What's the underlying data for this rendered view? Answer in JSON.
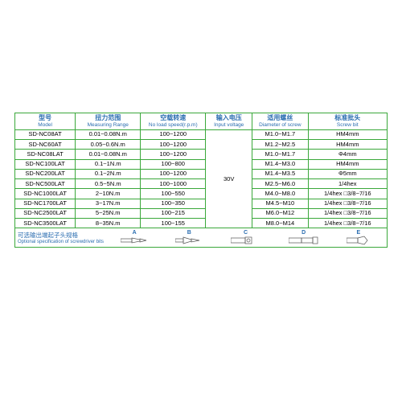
{
  "headers": [
    {
      "cn": "型号",
      "en": "Model"
    },
    {
      "cn": "扭力范围",
      "en": "Measuring Range"
    },
    {
      "cn": "空载转速",
      "en": "No load speed(r.p.m)"
    },
    {
      "cn": "输入电压",
      "en": "Input voltage"
    },
    {
      "cn": "适用螺丝",
      "en": "Diameter of screw"
    },
    {
      "cn": "标准批头",
      "en": "Screw bit"
    }
  ],
  "voltage": "30V",
  "rows": [
    {
      "model": "SD-NC08AT",
      "range": "0.01~0.08N.m",
      "speed": "100~1200",
      "screw": "M1.0~M1.7",
      "bit": "HM4mm"
    },
    {
      "model": "SD-NC60AT",
      "range": "0.05~0.6N.m",
      "speed": "100~1200",
      "screw": "M1.2~M2.5",
      "bit": "HM4mm"
    },
    {
      "model": "SD-NC08LAT",
      "range": "0.01~0.08N.m",
      "speed": "100~1200",
      "screw": "M1.0~M1.7",
      "bit": "Φ4mm"
    },
    {
      "model": "SD-NC100LAT",
      "range": "0.1~1N.m",
      "speed": "100~800",
      "screw": "M1.4~M3.0",
      "bit": "HM4mm"
    },
    {
      "model": "SD-NC200LAT",
      "range": "0.1~2N.m",
      "speed": "100~1200",
      "screw": "M1.4~M3.5",
      "bit": "Φ5mm"
    },
    {
      "model": "SD-NC500LAT",
      "range": "0.5~5N.m",
      "speed": "100~1000",
      "screw": "M2.5~M6.0",
      "bit": "1/4hex"
    },
    {
      "model": "SD-NC1000LAT",
      "range": "2~10N.m",
      "speed": "100~550",
      "screw": "M4.0~M8.0",
      "bit": "1/4hex □3/8~7/16"
    },
    {
      "model": "SD-NC1700LAT",
      "range": "3~17N.m",
      "speed": "100~350",
      "screw": "M4.5~M10",
      "bit": "1/4hex □3/8~7/16"
    },
    {
      "model": "SD-NC2500LAT",
      "range": "5~25N.m",
      "speed": "100~215",
      "screw": "M6.0~M12",
      "bit": "1/4hex □3/8~7/16"
    },
    {
      "model": "SD-NC3500LAT",
      "range": "8~35N.m",
      "speed": "100~155",
      "screw": "M8.0~M14",
      "bit": "1/4hex □3/8~7/16"
    }
  ],
  "footer": {
    "cn": "可选输出端起子头规格",
    "en": "Optional specification of screwdriver bits"
  },
  "bitlabels": [
    "A",
    "B",
    "C",
    "D",
    "E"
  ]
}
